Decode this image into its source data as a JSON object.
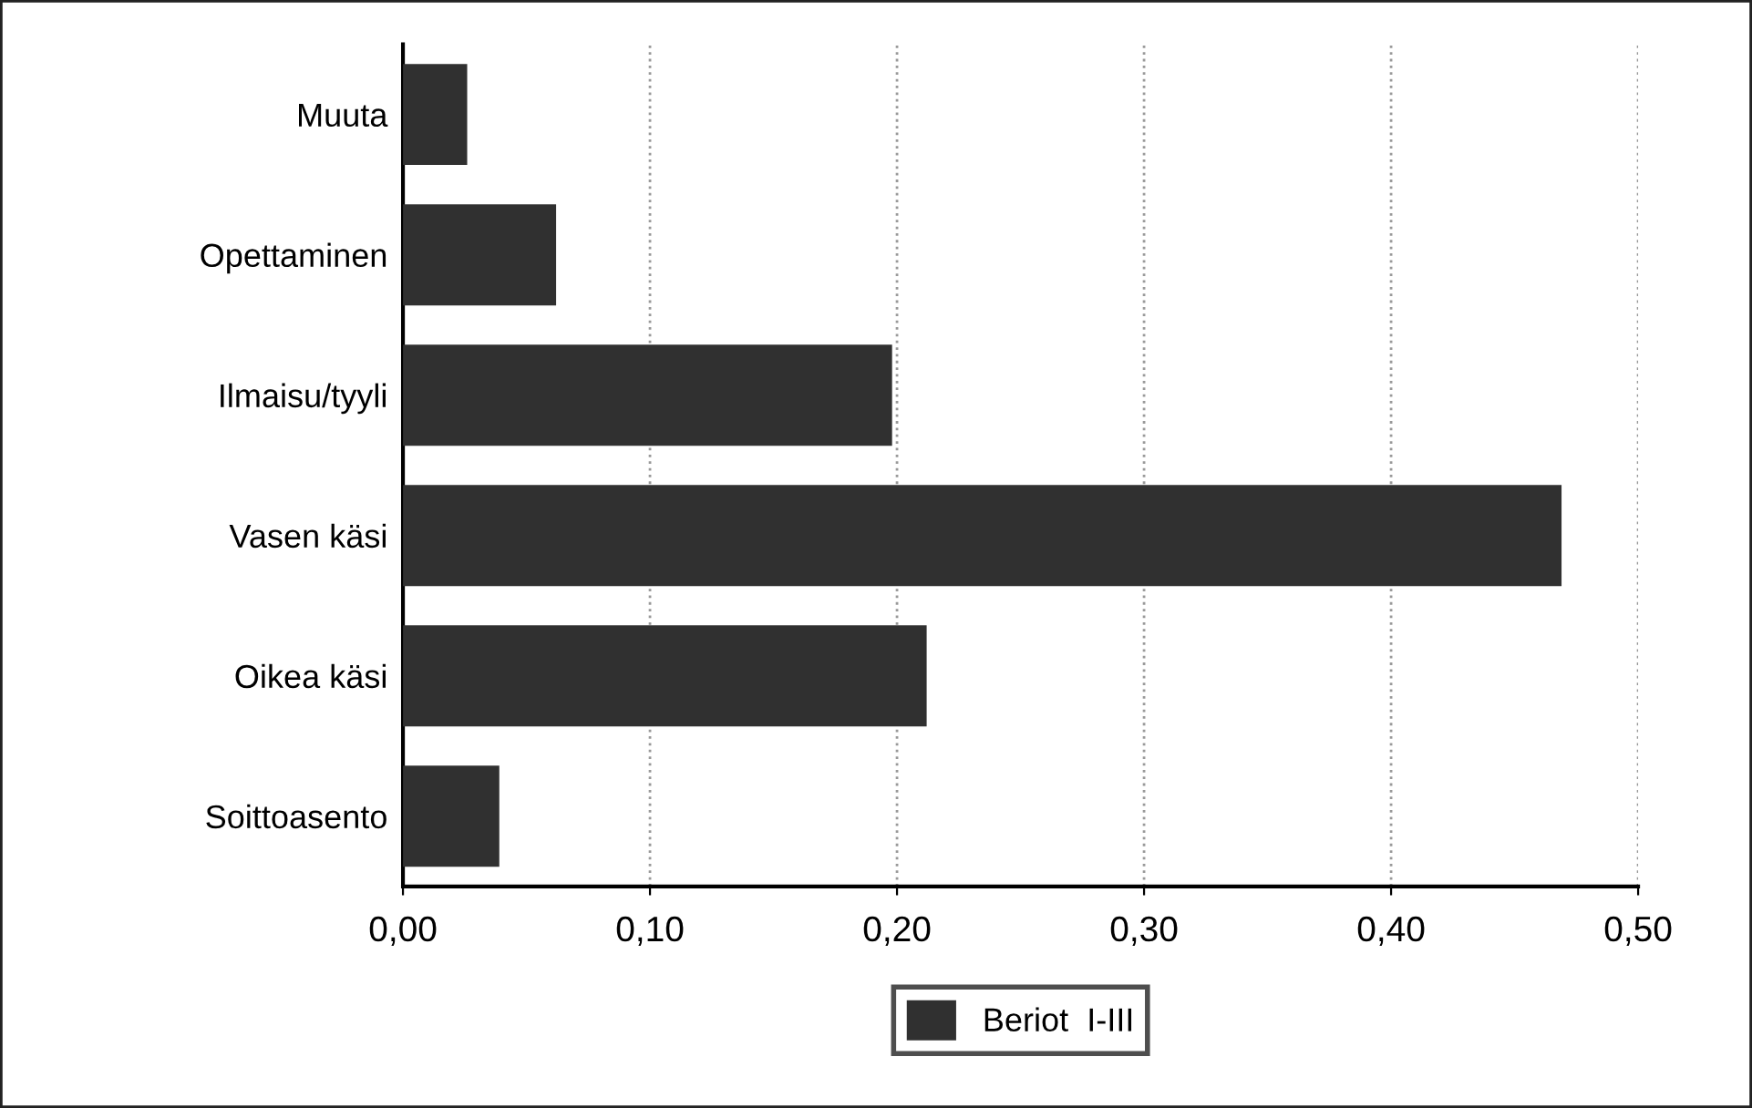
{
  "chart_data": {
    "type": "bar",
    "orientation": "horizontal",
    "categories": [
      "Muuta",
      "Opettaminen",
      "Ilmaisu/tyyli",
      "Vasen käsi",
      "Oikea käsi",
      "Soittoasento"
    ],
    "series": [
      {
        "name": "Beriot  I-III",
        "color": "#303030",
        "values": [
          0.026,
          0.062,
          0.198,
          0.469,
          0.212,
          0.039
        ]
      }
    ],
    "xlim": [
      0,
      0.5
    ],
    "xticks": [
      {
        "value": 0,
        "label": "0,00"
      },
      {
        "value": 0.1,
        "label": "0,10"
      },
      {
        "value": 0.2,
        "label": "0,20"
      },
      {
        "value": 0.3,
        "label": "0,30"
      },
      {
        "value": 0.4,
        "label": "0,40"
      },
      {
        "value": 0.5,
        "label": "0,50"
      }
    ],
    "grid": "x",
    "legend": "bottom"
  }
}
